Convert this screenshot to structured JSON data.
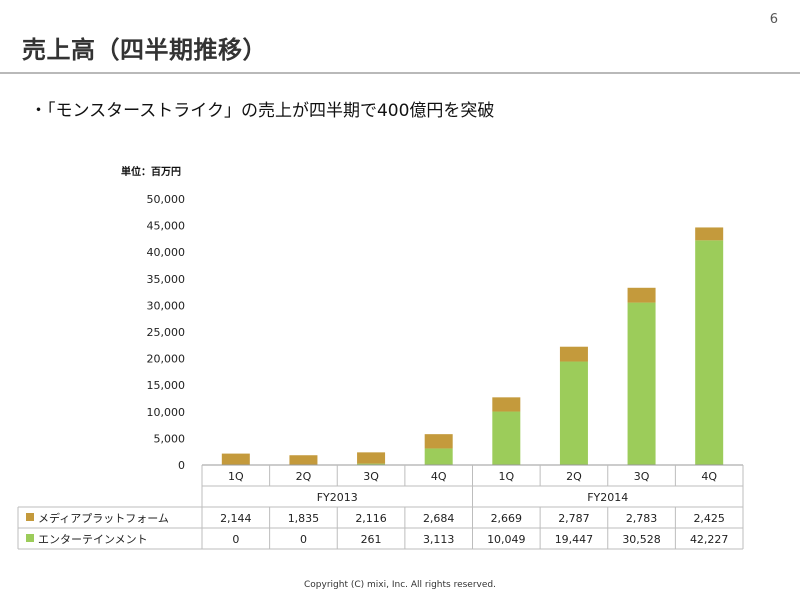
{
  "page_number": "6",
  "title": "売上高（四半期推移）",
  "bullet": "・「モンスターストライク」の売上が四半期で400億円を突破",
  "unit_label": "単位：百万円",
  "copyright": "Copyright (C) mixi, Inc. All rights reserved.",
  "chart_data": {
    "type": "bar",
    "stacked": true,
    "categories": [
      "1Q",
      "2Q",
      "3Q",
      "4Q",
      "1Q",
      "2Q",
      "3Q",
      "4Q"
    ],
    "groups": [
      {
        "label": "FY2013",
        "count": 4
      },
      {
        "label": "FY2014",
        "count": 4
      }
    ],
    "series": [
      {
        "name": "エンターテインメント",
        "color": "#9ccc5a",
        "values": [
          0,
          0,
          261,
          3113,
          10049,
          19447,
          30528,
          42227
        ]
      },
      {
        "name": "メディアプラットフォーム",
        "color": "#c49a3c",
        "values": [
          2144,
          1835,
          2116,
          2684,
          2669,
          2787,
          2783,
          2425
        ]
      }
    ],
    "table_rows": [
      {
        "name": "メディアプラットフォーム",
        "color": "#c49a3c",
        "values": [
          "2,144",
          "1,835",
          "2,116",
          "2,684",
          "2,669",
          "2,787",
          "2,783",
          "2,425"
        ]
      },
      {
        "name": "エンターテインメント",
        "color": "#9ccc5a",
        "values": [
          "0",
          "0",
          "261",
          "3,113",
          "10,049",
          "19,447",
          "30,528",
          "42,227"
        ]
      }
    ],
    "y_ticks": [
      "0",
      "5,000",
      "10,000",
      "15,000",
      "20,000",
      "25,000",
      "30,000",
      "35,000",
      "40,000",
      "45,000",
      "50,000"
    ],
    "ylim": [
      0,
      50000
    ],
    "legend": "table-left",
    "grid": false
  }
}
